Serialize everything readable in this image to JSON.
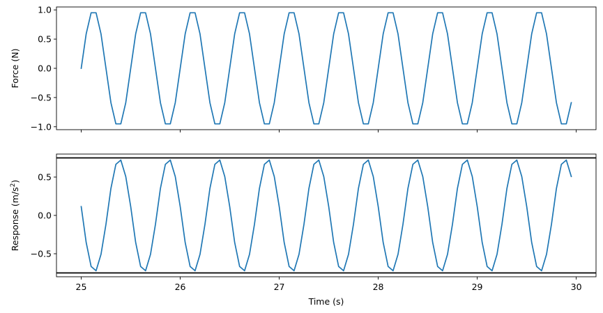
{
  "chart_data": [
    {
      "type": "line",
      "ylabel": "Force (N)",
      "xlabel": "",
      "xlim": [
        24.75,
        30.2
      ],
      "ylim": [
        -1.05,
        1.05
      ],
      "xticks": [
        25,
        26,
        27,
        28,
        29,
        30
      ],
      "yticks": [
        -1.0,
        -0.5,
        0.0,
        0.5,
        1.0
      ],
      "ytick_labels": [
        "−1.0",
        "−0.5",
        "0.0",
        "0.5",
        "1.0"
      ],
      "show_xtick_labels": false,
      "grid": false,
      "series": [
        {
          "color": "#1f77b4",
          "x": [
            25.0,
            25.05,
            25.1,
            25.15,
            25.2,
            25.25,
            25.3,
            25.35,
            25.4,
            25.45,
            25.5,
            25.55,
            25.6,
            25.65,
            25.7,
            25.75,
            25.8,
            25.85,
            25.9,
            25.95,
            26.0,
            26.05,
            26.1,
            26.15,
            26.2,
            26.25,
            26.3,
            26.35,
            26.4,
            26.45,
            26.5,
            26.55,
            26.6,
            26.65,
            26.7,
            26.75,
            26.8,
            26.85,
            26.9,
            26.95,
            27.0,
            27.05,
            27.1,
            27.15,
            27.2,
            27.25,
            27.3,
            27.35,
            27.4,
            27.45,
            27.5,
            27.55,
            27.6,
            27.65,
            27.7,
            27.75,
            27.8,
            27.85,
            27.9,
            27.95,
            28.0,
            28.05,
            28.1,
            28.15,
            28.2,
            28.25,
            28.3,
            28.35,
            28.4,
            28.45,
            28.5,
            28.55,
            28.6,
            28.65,
            28.7,
            28.75,
            28.8,
            28.85,
            28.9,
            28.95,
            29.0,
            29.05,
            29.1,
            29.15,
            29.2,
            29.25,
            29.3,
            29.35,
            29.4,
            29.45,
            29.5,
            29.55,
            29.6,
            29.65,
            29.7,
            29.75,
            29.8,
            29.85,
            29.9,
            29.95
          ],
          "y": [
            0.0,
            0.588,
            0.951,
            0.951,
            0.588,
            0.0,
            -0.588,
            -0.951,
            -0.951,
            -0.588,
            0.0,
            0.588,
            0.951,
            0.951,
            0.588,
            0.0,
            -0.588,
            -0.951,
            -0.951,
            -0.588,
            0.0,
            0.588,
            0.951,
            0.951,
            0.588,
            0.0,
            -0.588,
            -0.951,
            -0.951,
            -0.588,
            0.0,
            0.588,
            0.951,
            0.951,
            0.588,
            0.0,
            -0.588,
            -0.951,
            -0.951,
            -0.588,
            0.0,
            0.588,
            0.951,
            0.951,
            0.588,
            0.0,
            -0.588,
            -0.951,
            -0.951,
            -0.588,
            0.0,
            0.588,
            0.951,
            0.951,
            0.588,
            0.0,
            -0.588,
            -0.951,
            -0.951,
            -0.588,
            0.0,
            0.588,
            0.951,
            0.951,
            0.588,
            0.0,
            -0.588,
            -0.951,
            -0.951,
            -0.588,
            0.0,
            0.588,
            0.951,
            0.951,
            0.588,
            0.0,
            -0.588,
            -0.951,
            -0.951,
            -0.588,
            0.0,
            0.588,
            0.951,
            0.951,
            0.588,
            0.0,
            -0.588,
            -0.951,
            -0.951,
            -0.588,
            0.0,
            0.588,
            0.951,
            0.951,
            0.588,
            0.0,
            -0.588,
            -0.951,
            -0.951,
            -0.588
          ]
        }
      ]
    },
    {
      "type": "line",
      "ylabel": "Response (m/s",
      "ylabel_superscript": "2",
      "ylabel_suffix": ")",
      "xlabel": "Time (s)",
      "xlim": [
        24.75,
        30.2
      ],
      "ylim": [
        -0.8,
        0.8
      ],
      "xticks": [
        25,
        26,
        27,
        28,
        29,
        30
      ],
      "xtick_labels": [
        "25",
        "26",
        "27",
        "28",
        "29",
        "30"
      ],
      "yticks": [
        -0.5,
        0.0,
        0.5
      ],
      "ytick_labels": [
        "−0.5",
        "0.0",
        "0.5"
      ],
      "show_xtick_labels": true,
      "grid": false,
      "hlines": [
        {
          "y": 0.75,
          "color": "#000000"
        },
        {
          "y": -0.75,
          "color": "#000000"
        }
      ],
      "series": [
        {
          "color": "#1f77b4",
          "x": [
            25.0,
            25.05,
            25.1,
            25.15,
            25.2,
            25.25,
            25.3,
            25.35,
            25.4,
            25.45,
            25.5,
            25.55,
            25.6,
            25.65,
            25.7,
            25.75,
            25.8,
            25.85,
            25.9,
            25.95,
            26.0,
            26.05,
            26.1,
            26.15,
            26.2,
            26.25,
            26.3,
            26.35,
            26.4,
            26.45,
            26.5,
            26.55,
            26.6,
            26.65,
            26.7,
            26.75,
            26.8,
            26.85,
            26.9,
            26.95,
            27.0,
            27.05,
            27.1,
            27.15,
            27.2,
            27.25,
            27.3,
            27.35,
            27.4,
            27.45,
            27.5,
            27.55,
            27.6,
            27.65,
            27.7,
            27.75,
            27.8,
            27.85,
            27.9,
            27.95,
            28.0,
            28.05,
            28.1,
            28.15,
            28.2,
            28.25,
            28.3,
            28.35,
            28.4,
            28.45,
            28.5,
            28.55,
            28.6,
            28.65,
            28.7,
            28.75,
            28.8,
            28.85,
            28.9,
            28.95,
            29.0,
            29.05,
            29.1,
            29.15,
            29.2,
            29.25,
            29.3,
            29.35,
            29.4,
            29.45,
            29.5,
            29.55,
            29.6,
            29.65,
            29.7,
            29.75,
            29.8,
            29.85,
            29.9,
            29.95
          ],
          "y": [
            0.115,
            -0.352,
            -0.666,
            -0.722,
            -0.507,
            -0.115,
            0.352,
            0.666,
            0.722,
            0.507,
            0.115,
            -0.352,
            -0.666,
            -0.722,
            -0.507,
            -0.115,
            0.352,
            0.666,
            0.722,
            0.507,
            0.115,
            -0.352,
            -0.666,
            -0.722,
            -0.507,
            -0.115,
            0.352,
            0.666,
            0.722,
            0.507,
            0.115,
            -0.352,
            -0.666,
            -0.722,
            -0.507,
            -0.115,
            0.352,
            0.666,
            0.722,
            0.507,
            0.115,
            -0.352,
            -0.666,
            -0.722,
            -0.507,
            -0.115,
            0.352,
            0.666,
            0.722,
            0.507,
            0.115,
            -0.352,
            -0.666,
            -0.722,
            -0.507,
            -0.115,
            0.352,
            0.666,
            0.722,
            0.507,
            0.115,
            -0.352,
            -0.666,
            -0.722,
            -0.507,
            -0.115,
            0.352,
            0.666,
            0.722,
            0.507,
            0.115,
            -0.352,
            -0.666,
            -0.722,
            -0.507,
            -0.115,
            0.352,
            0.666,
            0.722,
            0.507,
            0.115,
            -0.352,
            -0.666,
            -0.722,
            -0.507,
            -0.115,
            0.352,
            0.666,
            0.722,
            0.507,
            0.115,
            -0.352,
            -0.666,
            -0.722,
            -0.507,
            -0.115,
            0.352,
            0.666,
            0.722,
            0.507
          ]
        }
      ]
    }
  ]
}
